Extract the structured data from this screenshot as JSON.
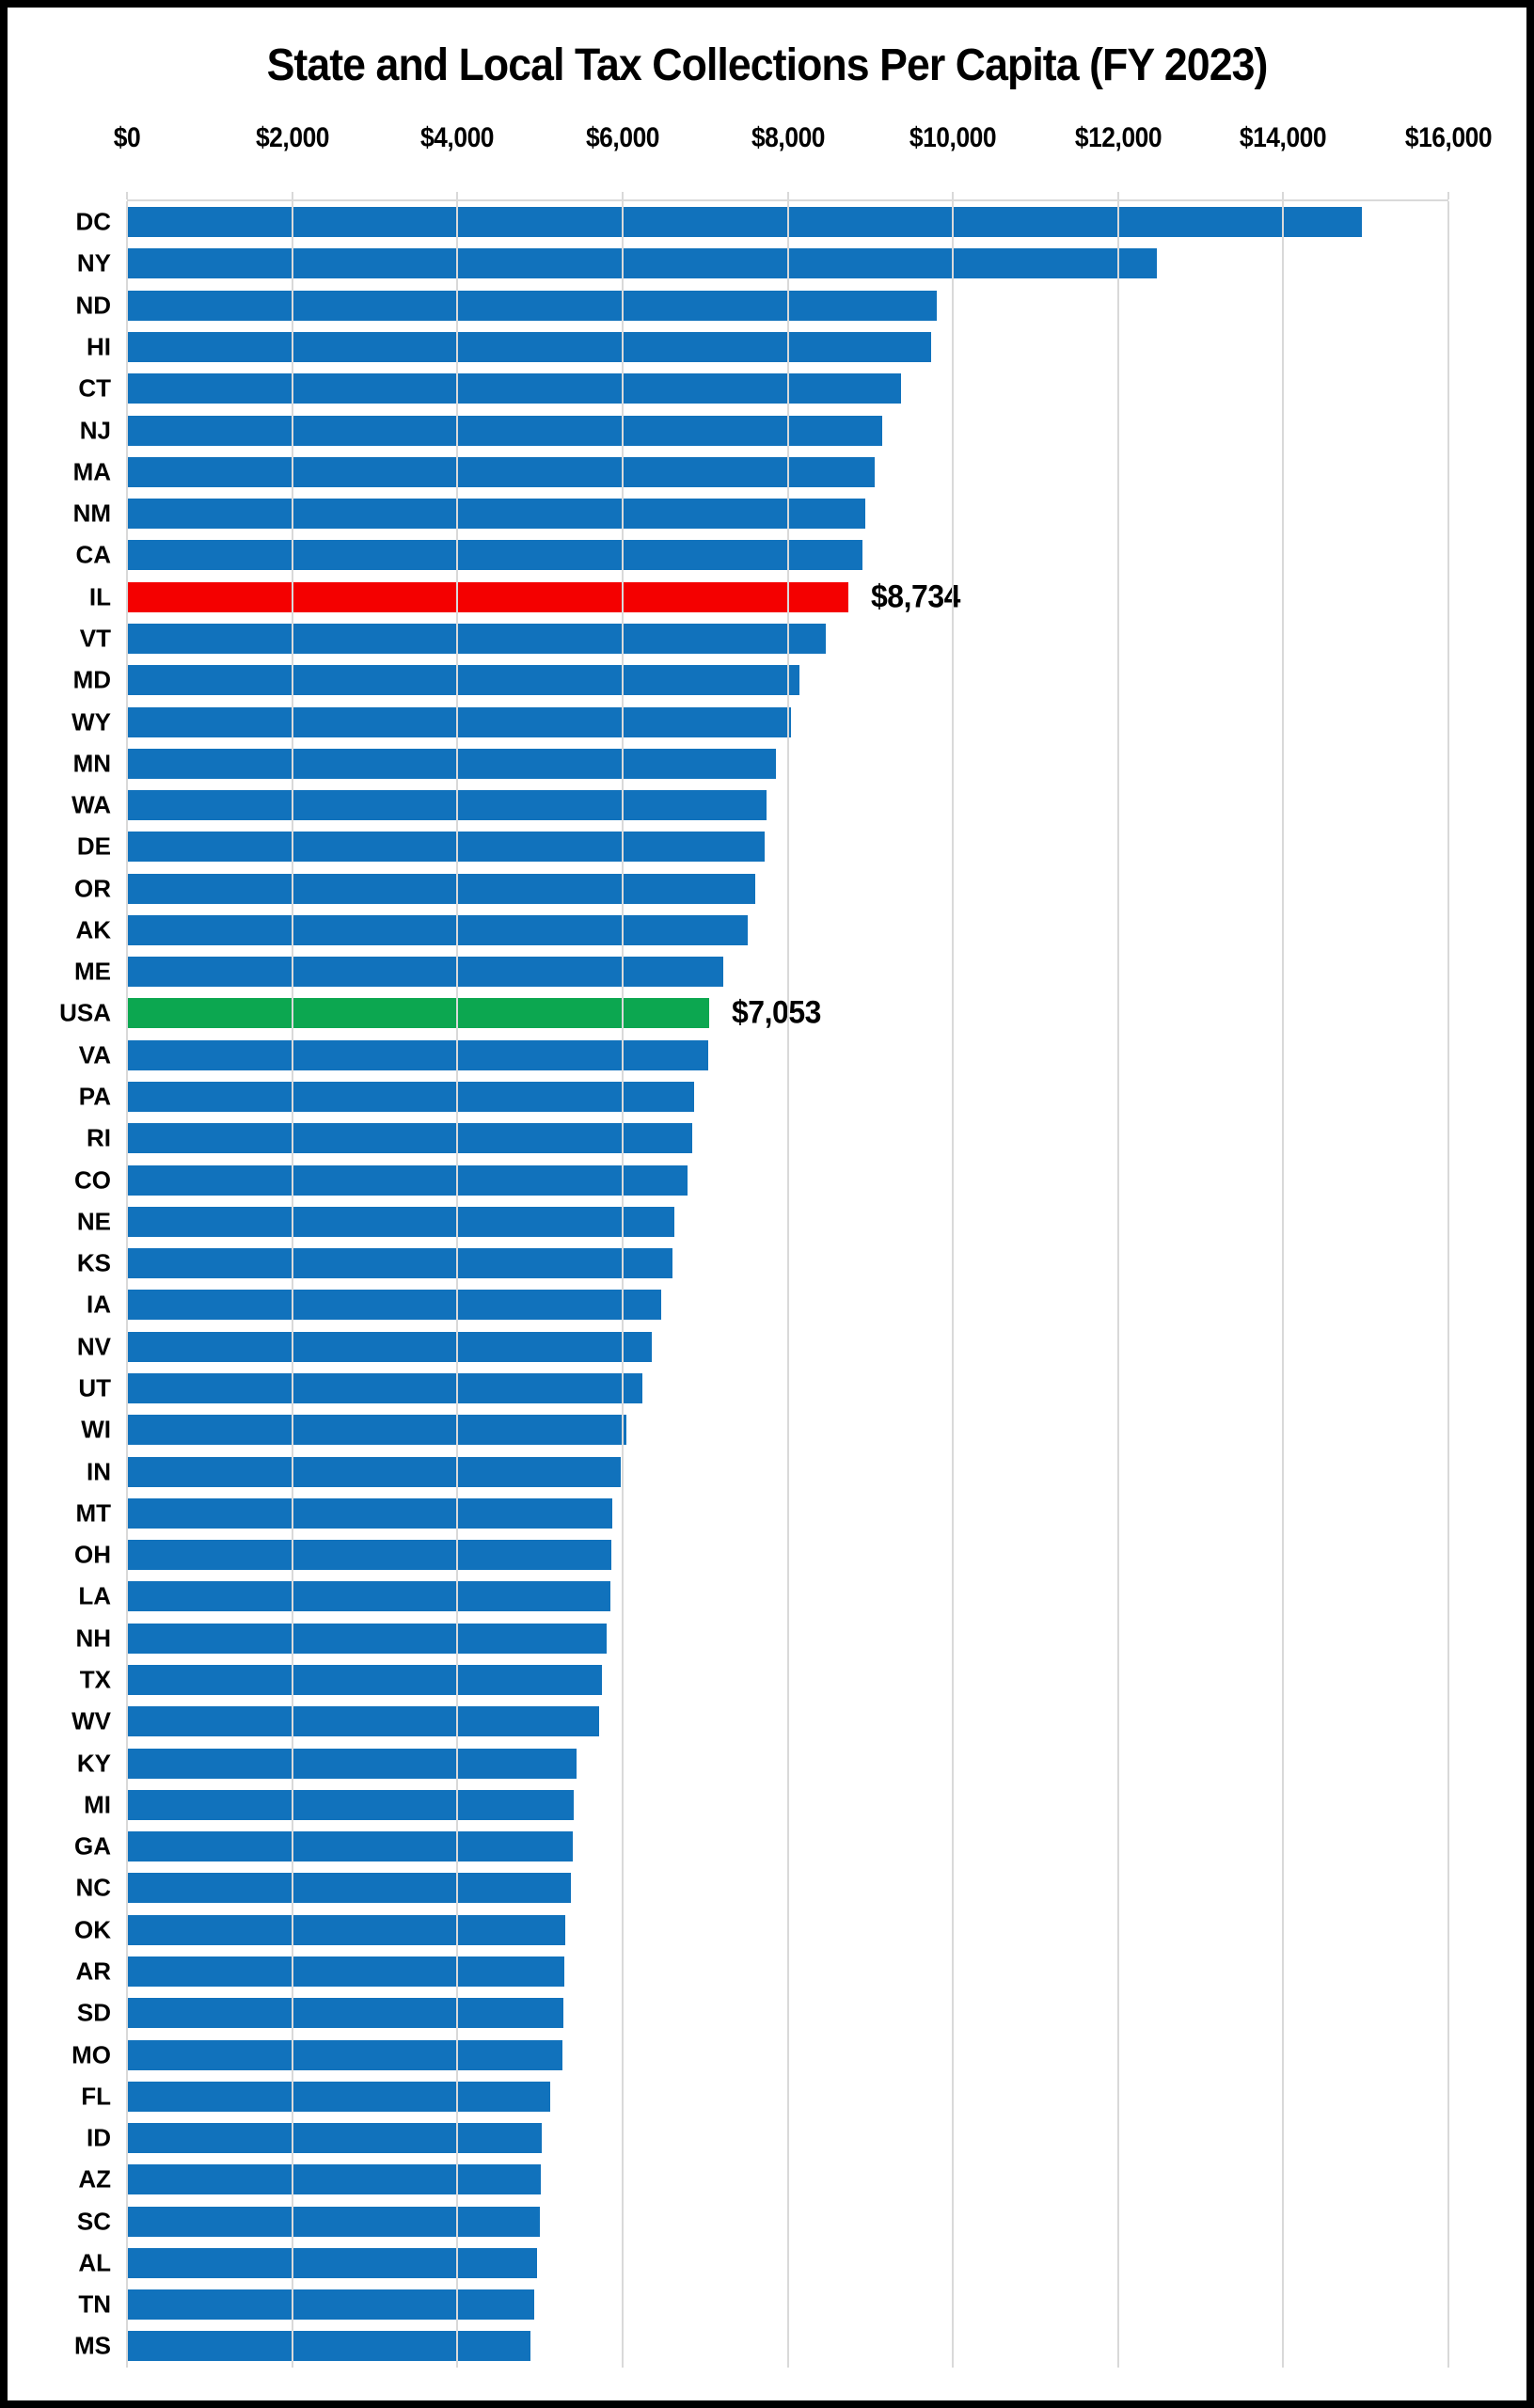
{
  "title": "State and Local Tax Collections Per Capita (FY 2023)",
  "colors": {
    "blue": "#1172BC",
    "red": "#F40000",
    "green": "#0CA750",
    "gridline": "#D9D9D9",
    "text": "#000000",
    "border": "#000000",
    "background": "#FFFFFF"
  },
  "chart_data": {
    "type": "bar",
    "orientation": "horizontal",
    "title": "State and Local Tax Collections Per Capita (FY 2023)",
    "xlabel": "",
    "ylabel": "",
    "xlim": [
      0,
      16000
    ],
    "grid": "vertical",
    "axis_position": "top",
    "x_ticks": [
      {
        "label": "$0",
        "value": 0
      },
      {
        "label": "$2,000",
        "value": 2000
      },
      {
        "label": "$4,000",
        "value": 4000
      },
      {
        "label": "$6,000",
        "value": 6000
      },
      {
        "label": "$8,000",
        "value": 8000
      },
      {
        "label": "$10,000",
        "value": 10000
      },
      {
        "label": "$12,000",
        "value": 12000
      },
      {
        "label": "$14,000",
        "value": 14000
      },
      {
        "label": "$16,000",
        "value": 16000
      }
    ],
    "rows": [
      {
        "label": "DC",
        "value": 14955,
        "color": "blue"
      },
      {
        "label": "NY",
        "value": 12465,
        "color": "blue"
      },
      {
        "label": "ND",
        "value": 9805,
        "color": "blue"
      },
      {
        "label": "HI",
        "value": 9735,
        "color": "blue"
      },
      {
        "label": "CT",
        "value": 9375,
        "color": "blue"
      },
      {
        "label": "NJ",
        "value": 9150,
        "color": "blue"
      },
      {
        "label": "MA",
        "value": 9055,
        "color": "blue"
      },
      {
        "label": "NM",
        "value": 8940,
        "color": "blue"
      },
      {
        "label": "CA",
        "value": 8910,
        "color": "blue"
      },
      {
        "label": "IL",
        "value": 8734,
        "color": "red",
        "annotation": "$8,734"
      },
      {
        "label": "VT",
        "value": 8465,
        "color": "blue"
      },
      {
        "label": "MD",
        "value": 8145,
        "color": "blue"
      },
      {
        "label": "WY",
        "value": 8045,
        "color": "blue"
      },
      {
        "label": "MN",
        "value": 7860,
        "color": "blue"
      },
      {
        "label": "WA",
        "value": 7740,
        "color": "blue"
      },
      {
        "label": "DE",
        "value": 7725,
        "color": "blue"
      },
      {
        "label": "OR",
        "value": 7605,
        "color": "blue"
      },
      {
        "label": "AK",
        "value": 7515,
        "color": "blue"
      },
      {
        "label": "ME",
        "value": 7215,
        "color": "blue"
      },
      {
        "label": "USA",
        "value": 7053,
        "color": "green",
        "annotation": "$7,053"
      },
      {
        "label": "VA",
        "value": 7035,
        "color": "blue"
      },
      {
        "label": "PA",
        "value": 6865,
        "color": "blue"
      },
      {
        "label": "RI",
        "value": 6840,
        "color": "blue"
      },
      {
        "label": "CO",
        "value": 6785,
        "color": "blue"
      },
      {
        "label": "NE",
        "value": 6625,
        "color": "blue"
      },
      {
        "label": "KS",
        "value": 6600,
        "color": "blue"
      },
      {
        "label": "IA",
        "value": 6470,
        "color": "blue"
      },
      {
        "label": "NV",
        "value": 6360,
        "color": "blue"
      },
      {
        "label": "UT",
        "value": 6240,
        "color": "blue"
      },
      {
        "label": "WI",
        "value": 6045,
        "color": "blue"
      },
      {
        "label": "IN",
        "value": 5975,
        "color": "blue"
      },
      {
        "label": "MT",
        "value": 5880,
        "color": "blue"
      },
      {
        "label": "OH",
        "value": 5870,
        "color": "blue"
      },
      {
        "label": "LA",
        "value": 5850,
        "color": "blue"
      },
      {
        "label": "NH",
        "value": 5805,
        "color": "blue"
      },
      {
        "label": "TX",
        "value": 5750,
        "color": "blue"
      },
      {
        "label": "WV",
        "value": 5715,
        "color": "blue"
      },
      {
        "label": "KY",
        "value": 5445,
        "color": "blue"
      },
      {
        "label": "MI",
        "value": 5405,
        "color": "blue"
      },
      {
        "label": "GA",
        "value": 5400,
        "color": "blue"
      },
      {
        "label": "NC",
        "value": 5370,
        "color": "blue"
      },
      {
        "label": "OK",
        "value": 5305,
        "color": "blue"
      },
      {
        "label": "AR",
        "value": 5290,
        "color": "blue"
      },
      {
        "label": "SD",
        "value": 5285,
        "color": "blue"
      },
      {
        "label": "MO",
        "value": 5275,
        "color": "blue"
      },
      {
        "label": "FL",
        "value": 5130,
        "color": "blue"
      },
      {
        "label": "ID",
        "value": 5020,
        "color": "blue"
      },
      {
        "label": "AZ",
        "value": 5015,
        "color": "blue"
      },
      {
        "label": "SC",
        "value": 5000,
        "color": "blue"
      },
      {
        "label": "AL",
        "value": 4960,
        "color": "blue"
      },
      {
        "label": "TN",
        "value": 4935,
        "color": "blue"
      },
      {
        "label": "MS",
        "value": 4885,
        "color": "blue"
      }
    ]
  }
}
